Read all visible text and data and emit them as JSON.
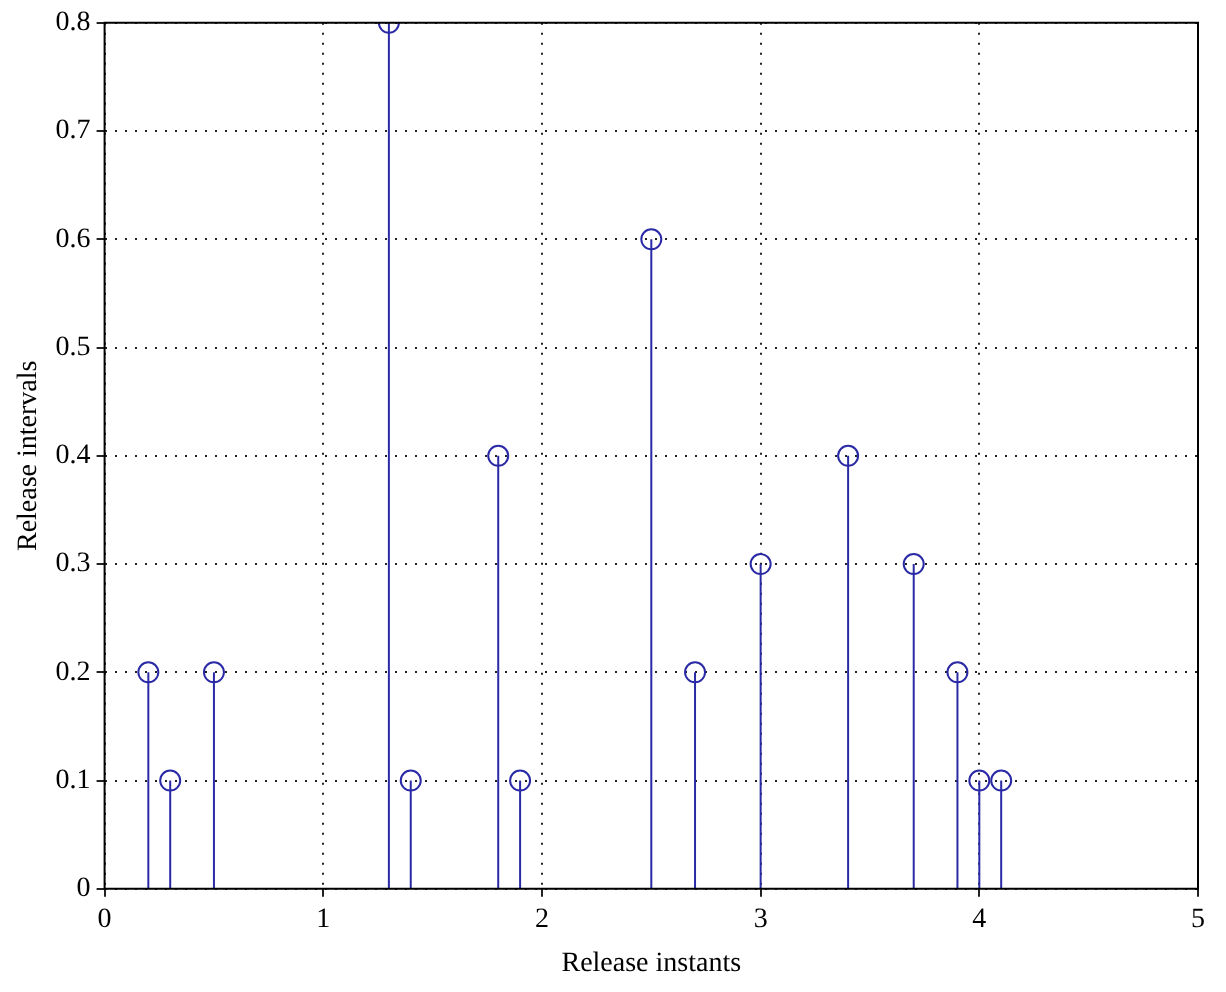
{
  "chart_data": {
    "type": "lollipop",
    "xlabel": "Release instants",
    "ylabel": "Release intervals",
    "x": [
      0.2,
      0.3,
      0.5,
      1.3,
      1.4,
      1.8,
      1.9,
      2.5,
      2.7,
      3.0,
      3.4,
      3.7,
      3.9,
      4.0,
      4.1
    ],
    "values": [
      0.2,
      0.1,
      0.2,
      0.8,
      0.1,
      0.4,
      0.1,
      0.6,
      0.2,
      0.3,
      0.4,
      0.3,
      0.2,
      0.1,
      0.1
    ],
    "color": "#2a2aa6",
    "marker": "circle",
    "grid": true,
    "line_style": "dotted",
    "xlim": [
      0,
      5
    ],
    "xticks": [
      0,
      1,
      2,
      3,
      4,
      5
    ],
    "ylim": [
      0,
      0.8
    ],
    "yticks": [
      0,
      0.1,
      0.2,
      0.3,
      0.4,
      0.5,
      0.6,
      0.7,
      0.8
    ]
  }
}
